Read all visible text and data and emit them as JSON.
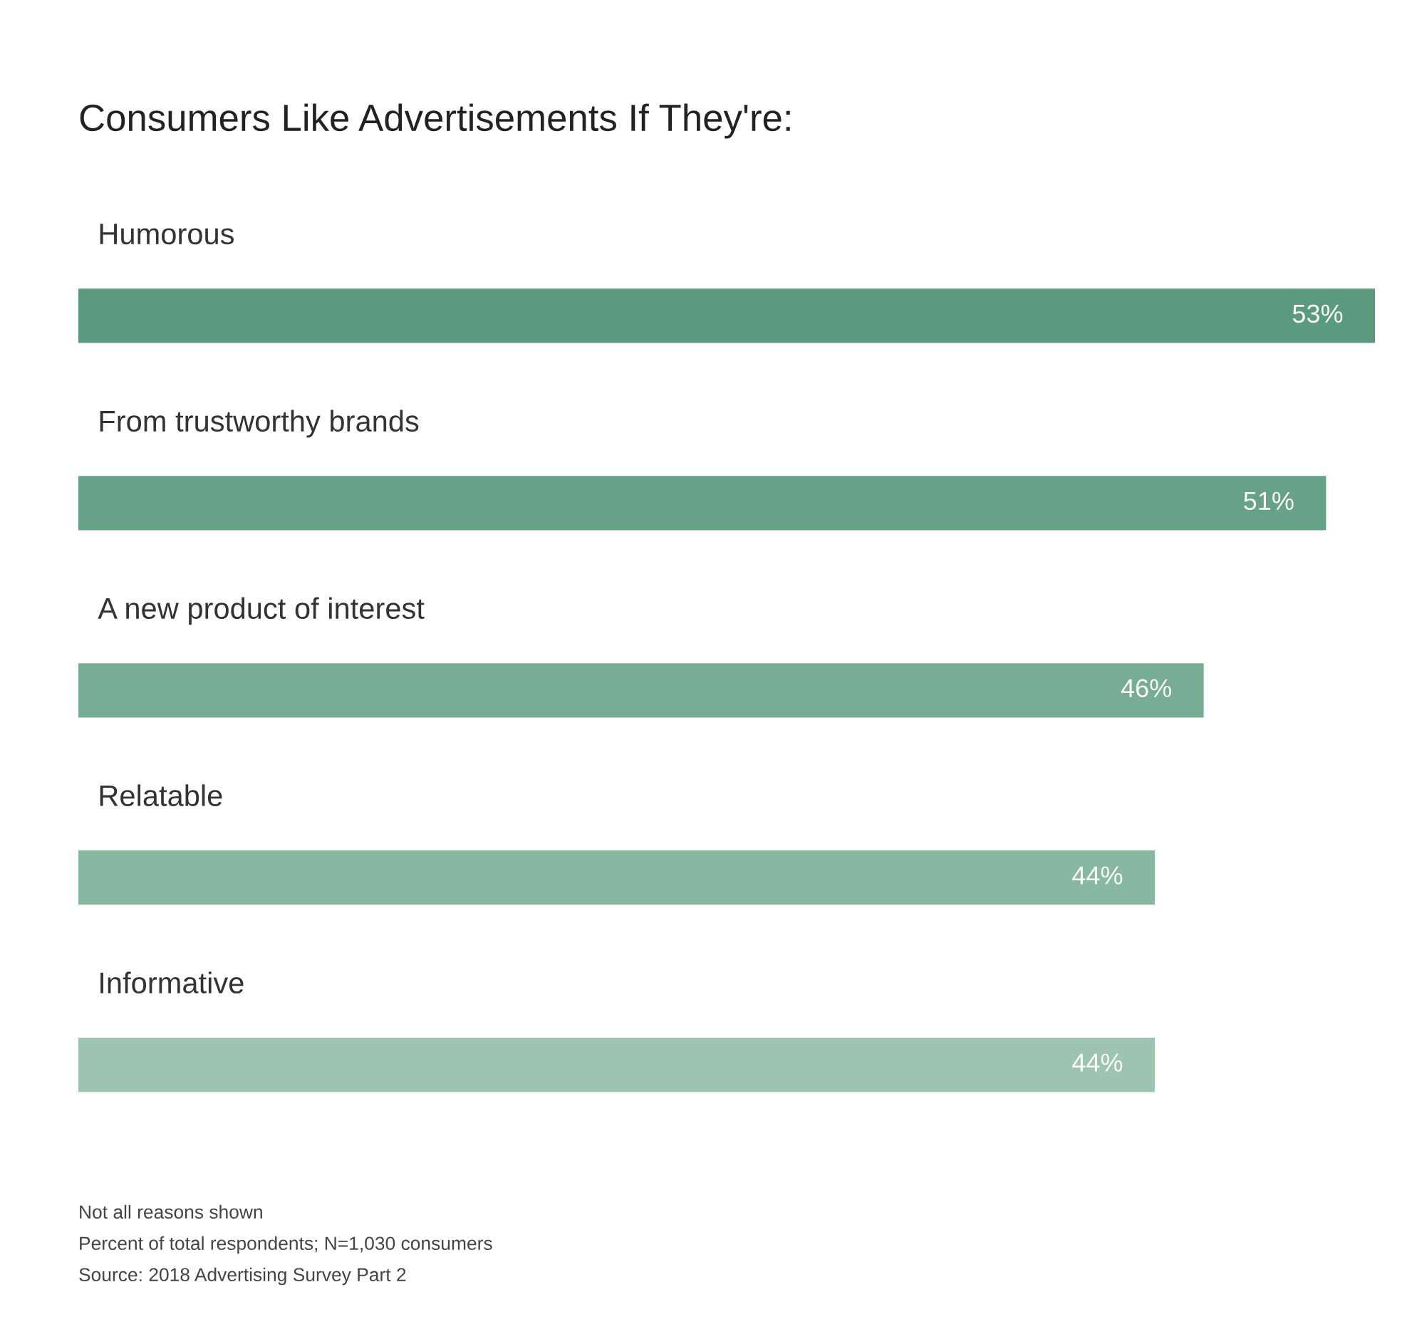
{
  "chart_data": {
    "type": "bar",
    "orientation": "horizontal",
    "data_labels": true,
    "title": "Consumers Like Advertisements If They're:",
    "categories": [
      "Humorous",
      "From trustworthy brands",
      "A new product of interest",
      "Relatable",
      "Informative"
    ],
    "values": [
      53,
      51,
      46,
      44,
      44
    ],
    "value_labels": [
      "53%",
      "51%",
      "46%",
      "44%",
      "44%"
    ],
    "colors": [
      "#5a9a7e",
      "#66a287",
      "#78ad95",
      "#88b8a2",
      "#9cc4b1"
    ],
    "annotations": [
      "Not all reasons shown",
      "Percent of total respondents; N=1,030 consumers",
      "Source: 2018 Advertising Survey Part 2"
    ],
    "legend": false
  }
}
